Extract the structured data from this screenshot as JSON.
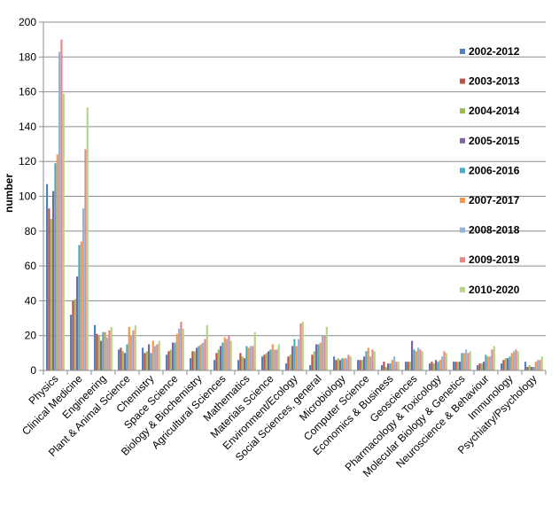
{
  "chart_data": {
    "type": "bar",
    "ylabel": "number",
    "ylim": [
      0,
      200
    ],
    "yticks": [
      0,
      20,
      40,
      60,
      80,
      100,
      120,
      140,
      160,
      180,
      200
    ],
    "grid": true,
    "legend_position": "right",
    "categories": [
      "Physics",
      "Clinical Medicine",
      "Engineering",
      "Plant & Animal Science",
      "Chemistry",
      "Space Science",
      "Biology & Biochemistry",
      "Agricultural Sciences",
      "Mathematics",
      "Materials Science",
      "Environment/Ecology",
      "Social Sciences, general",
      "Microbiology",
      "Computer Science",
      "Economics & Business",
      "Geosciences",
      "Pharmacology & Toxicology",
      "Molecular Biology & Genetics",
      "Neuroscience & Behaviour",
      "Immunology",
      "Psychiatry/Psychology"
    ],
    "series": [
      {
        "name": "2002-2012",
        "color": "#4F81BD",
        "values": [
          107,
          32,
          26,
          12,
          13,
          9,
          7,
          6,
          6,
          8,
          4,
          3,
          8,
          6,
          3,
          5,
          4,
          5,
          3,
          4,
          5
        ]
      },
      {
        "name": "2003-2013",
        "color": "#C0504D",
        "values": [
          93,
          40,
          21,
          13,
          10,
          11,
          11,
          10,
          10,
          9,
          8,
          9,
          6,
          6,
          5,
          5,
          5,
          5,
          4,
          6,
          2
        ]
      },
      {
        "name": "2004-2014",
        "color": "#9BBB59",
        "values": [
          87,
          41,
          20,
          11,
          11,
          12,
          11,
          12,
          8,
          10,
          9,
          11,
          7,
          6,
          2,
          5,
          4,
          5,
          4,
          7,
          3
        ]
      },
      {
        "name": "2005-2015",
        "color": "#8064A2",
        "values": [
          103,
          54,
          17,
          10,
          15,
          16,
          13,
          14,
          7,
          11,
          14,
          15,
          6,
          8,
          4,
          17,
          6,
          5,
          5,
          7,
          2
        ]
      },
      {
        "name": "2006-2016",
        "color": "#4BACC6",
        "values": [
          119,
          72,
          22,
          15,
          10,
          16,
          14,
          16,
          14,
          12,
          18,
          15,
          7,
          11,
          4,
          12,
          5,
          10,
          9,
          8,
          2
        ]
      },
      {
        "name": "2007-2017",
        "color": "#F79646",
        "values": [
          124,
          74,
          22,
          25,
          17,
          21,
          15,
          19,
          13,
          15,
          14,
          16,
          7,
          13,
          6,
          11,
          6,
          10,
          8,
          10,
          5
        ]
      },
      {
        "name": "2008-2018",
        "color": "#95B3D7",
        "values": [
          183,
          93,
          19,
          20,
          14,
          24,
          16,
          18,
          14,
          12,
          18,
          20,
          7,
          8,
          8,
          13,
          8,
          12,
          8,
          11,
          6
        ]
      },
      {
        "name": "2009-2019",
        "color": "#E6878C",
        "values": [
          190,
          127,
          23,
          23,
          15,
          28,
          18,
          20,
          14,
          12,
          27,
          20,
          9,
          12,
          5,
          12,
          11,
          10,
          12,
          12,
          6
        ]
      },
      {
        "name": "2010-2020",
        "color": "#B5D48A",
        "values": [
          159,
          151,
          25,
          26,
          17,
          24,
          26,
          17,
          22,
          15,
          28,
          25,
          8,
          11,
          5,
          11,
          10,
          11,
          14,
          11,
          8
        ]
      }
    ]
  }
}
